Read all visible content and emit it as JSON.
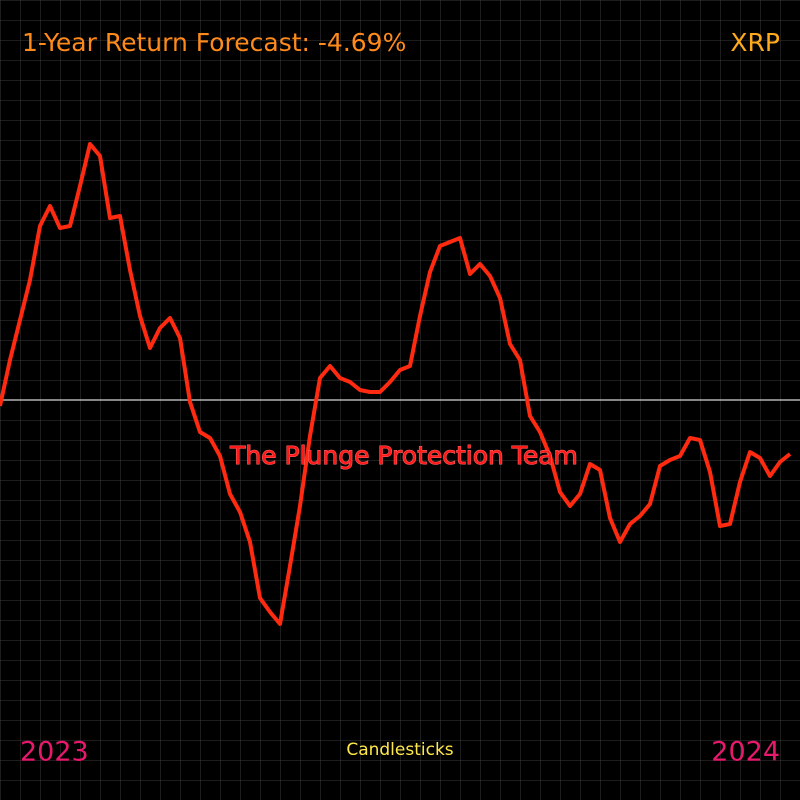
{
  "chart_data": {
    "type": "line",
    "title": "1-Year Return Forecast: -4.69%",
    "ticker": "XRP",
    "annotation": "The Plunge Protection Team",
    "start_label": "2023",
    "end_label": "2024",
    "footer": "Candlesticks",
    "color": "#ff2a10",
    "ylim": [
      -20,
      20
    ],
    "values": [
      -0.3,
      2.0,
      4.0,
      6.0,
      8.7,
      9.7,
      8.6,
      8.7,
      10.7,
      12.8,
      12.2,
      9.1,
      9.2,
      6.5,
      4.2,
      2.6,
      3.6,
      4.1,
      3.1,
      -0.1,
      -1.6,
      -1.9,
      -2.8,
      -4.7,
      -5.6,
      -7.1,
      -9.9,
      -10.6,
      -11.2,
      -8.3,
      -5.3,
      -1.8,
      1.1,
      1.7,
      1.1,
      0.9,
      0.5,
      0.4,
      0.4,
      0.9,
      1.5,
      1.7,
      4.2,
      6.4,
      7.7,
      7.9,
      8.1,
      6.3,
      6.8,
      6.2,
      5.1,
      2.8,
      2.0,
      -0.8,
      -1.6,
      -2.8,
      -4.6,
      -5.3,
      -4.7,
      -3.2,
      -3.5,
      -5.9,
      -7.1,
      -6.2,
      -5.8,
      -5.2,
      -3.3,
      -3.0,
      -2.8,
      -1.9,
      -2.0,
      -3.6,
      -6.3,
      -6.2,
      -4.1,
      -2.6,
      -2.9,
      -3.8,
      -3.1,
      -2.7
    ]
  }
}
